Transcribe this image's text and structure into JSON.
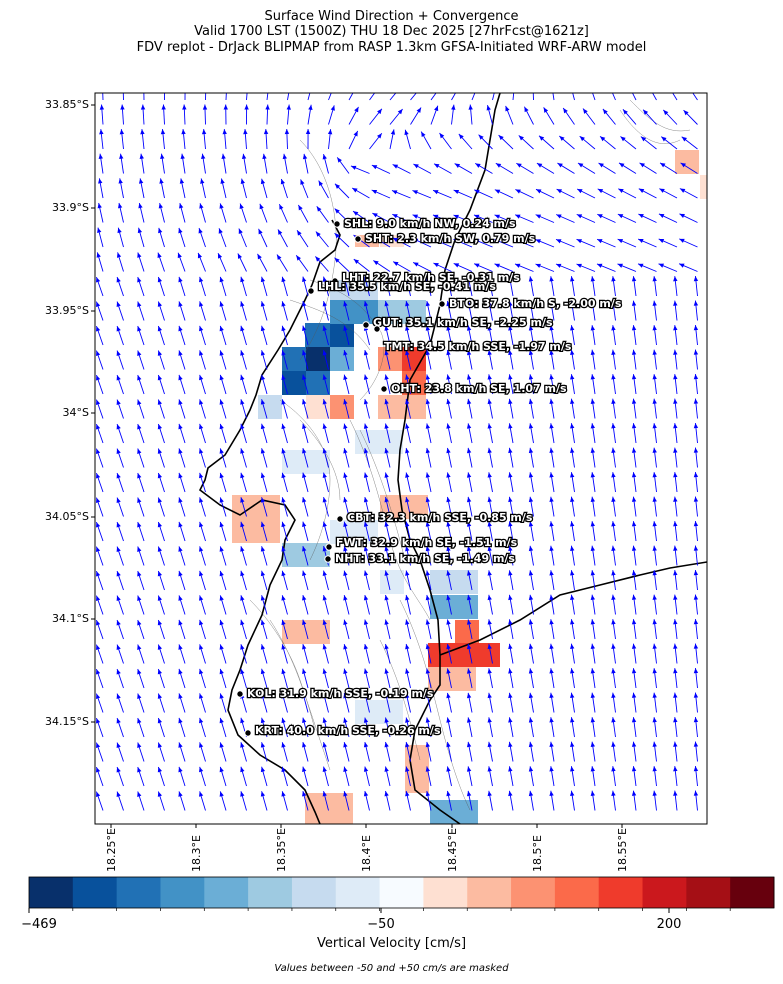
{
  "title": {
    "line1": "Surface Wind Direction + Convergence",
    "line2": "Valid 1700 LST (1500Z) THU 18 Dec 2025 [27hrFcst@1621z]",
    "line3": "FDV replot - DrJack BLIPMAP from RASP 1.3km GFSA-Initiated WRF-ARW model"
  },
  "axes": {
    "lat_ticks": [
      "33.85°S",
      "33.9°S",
      "33.95°S",
      "34°S",
      "34.05°S",
      "34.1°S",
      "34.15°S"
    ],
    "lon_ticks": [
      "18.25°E",
      "18.3°E",
      "18.35°E",
      "18.4°E",
      "18.45°E",
      "18.5°E",
      "18.55°E"
    ]
  },
  "stations": [
    {
      "label": "SHL: 9.0 km/h NW, 0.24 m/s"
    },
    {
      "label": "SHT: 2.3 km/h SW, 0.79 m/s"
    },
    {
      "label": "LHT: 22.7 km/h SE, -0.31 m/s"
    },
    {
      "label": "LHL: 35.5 km/h SE, -0.41 m/s"
    },
    {
      "label": "BTO: 37.8 km/h S, -2.00 m/s"
    },
    {
      "label": "GUT: 35.1 km/h SE, -2.25 m/s"
    },
    {
      "label": "TMT: 34.5 km/h SSE, -1.97 m/s"
    },
    {
      "label": "OHT: 23.8 km/h SE, 1.07 m/s"
    },
    {
      "label": "CBT: 32.3 km/h SSE, -0.85 m/s"
    },
    {
      "label": "FWT: 32.9 km/h SE, -1.51 m/s"
    },
    {
      "label": "NHT: 33.1 km/h SE, -1.49 m/s"
    },
    {
      "label": "KOL: 31.9 km/h SSE, -0.19 m/s"
    },
    {
      "label": "KRT: 40.0 km/h SSE, -0.26 m/s"
    }
  ],
  "colorbar": {
    "title": "Vertical Velocity [cm/s]",
    "ticks": [
      "−469",
      "−50",
      "200"
    ],
    "colors": [
      "#08306b",
      "#08519c",
      "#2171b5",
      "#4292c6",
      "#6baed6",
      "#9ecae1",
      "#c6dbef",
      "#deebf7",
      "#f7fbff",
      "#fee0d2",
      "#fcbba1",
      "#fc9272",
      "#fb6a4a",
      "#ef3b2c",
      "#cb181d",
      "#a50f15",
      "#67000d"
    ]
  },
  "note": "Values between -50 and +50 cm/s are masked",
  "colors": {
    "arrows": "#0000ff",
    "coast": "#000000",
    "contours": "#555555"
  }
}
